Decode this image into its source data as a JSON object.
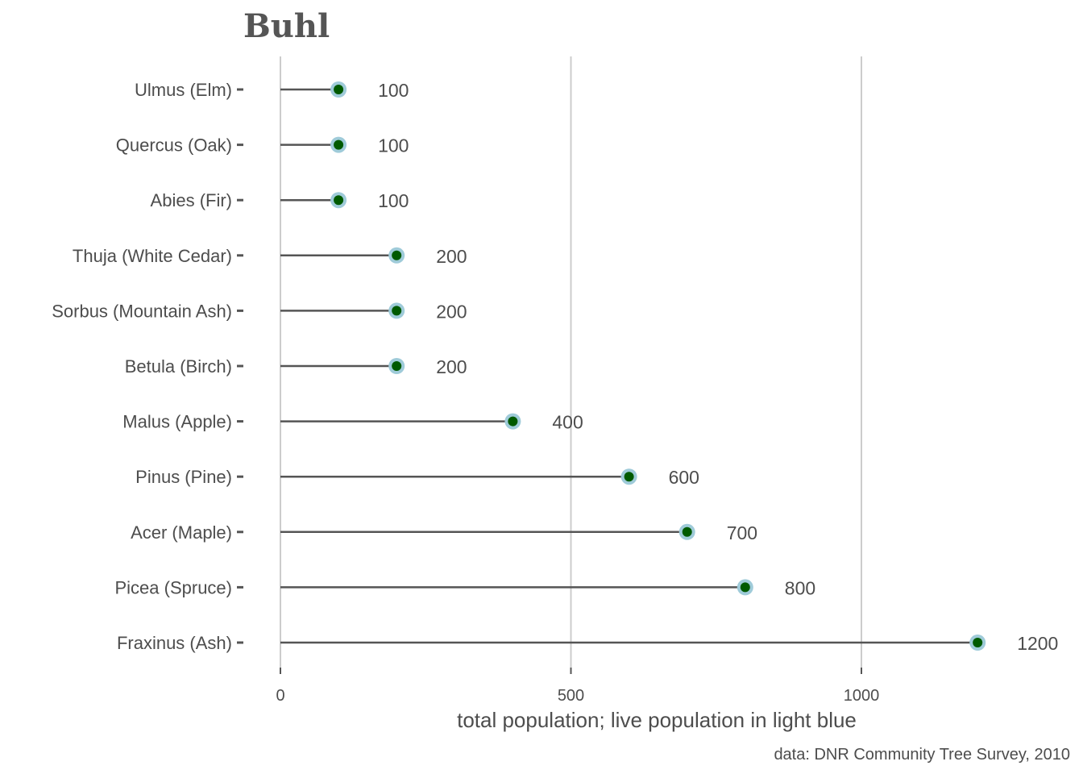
{
  "chart_data": {
    "type": "lollipop",
    "title": "Buhl",
    "xlabel": "total population; live population in light blue",
    "caption": "data: DNR Community Tree Survey, 2010",
    "xlim": [
      0,
      1200
    ],
    "xticks": [
      0,
      500,
      1000
    ],
    "xtick_labels": [
      "0",
      "500",
      "1000"
    ],
    "categories": [
      "Ulmus (Elm)",
      "Quercus (Oak)",
      "Abies (Fir)",
      "Thuja (White Cedar)",
      "Sorbus (Mountain Ash)",
      "Betula (Birch)",
      "Malus (Apple)",
      "Pinus (Pine)",
      "Acer (Maple)",
      "Picea (Spruce)",
      "Fraxinus (Ash)"
    ],
    "series": [
      {
        "name": "total population",
        "values": [
          100,
          100,
          100,
          200,
          200,
          200,
          400,
          600,
          700,
          800,
          1200
        ]
      },
      {
        "name": "live population",
        "values": [
          100,
          100,
          100,
          200,
          200,
          200,
          400,
          600,
          700,
          800,
          1200
        ]
      }
    ],
    "value_labels": [
      "100",
      "100",
      "100",
      "200",
      "200",
      "200",
      "400",
      "600",
      "700",
      "800",
      "1200"
    ],
    "grid": "vertical major",
    "colors": {
      "stem": "#555555",
      "live_point": "#9fcbd9",
      "total_point": "#005a00",
      "grid": "#cccccc",
      "text": "#4d4d4d"
    }
  }
}
